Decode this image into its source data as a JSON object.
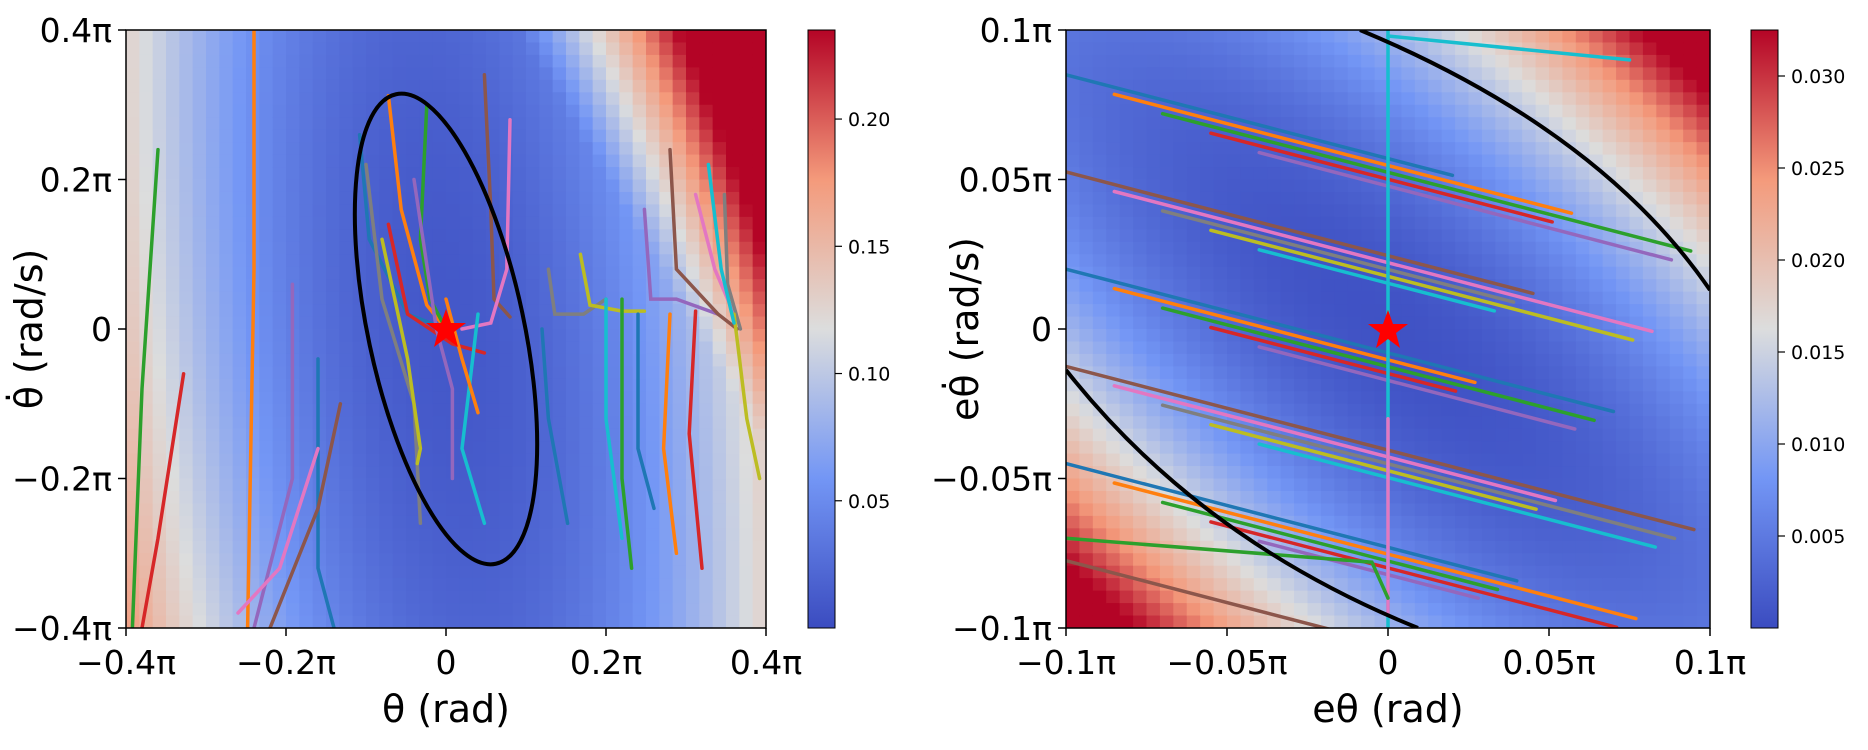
{
  "chart_data": [
    {
      "type": "heatmap",
      "title": "",
      "xlabel": "θ (rad)",
      "ylabel": "θ̇ (rad/s)",
      "x_ticks": [
        "−0.4π",
        "−0.2π",
        "0",
        "0.2π",
        "0.4π"
      ],
      "y_ticks": [
        "0.4π",
        "0.2π",
        "0",
        "−0.2π",
        "−0.4π"
      ],
      "xlim": [
        -0.4,
        0.4
      ],
      "ylim": [
        -0.4,
        0.4
      ],
      "units_note": "values in units of π",
      "colorbar": {
        "ticks": [
          "0.20",
          "0.15",
          "0.10",
          "0.05"
        ],
        "tick_values": [
          0.2,
          0.15,
          0.1,
          0.05
        ],
        "range": [
          0.0,
          0.235
        ]
      },
      "equilibrium_marker": {
        "x": 0,
        "y": 0,
        "label": "★"
      },
      "ellipse": {
        "center": [
          0,
          0
        ],
        "points_note": "closed black ellipse boundary",
        "extent_x": [
          -0.13,
          0.13
        ],
        "extent_y": [
          -0.32,
          0.32
        ]
      },
      "series_colors": [
        "#1f77b4",
        "#ff7f0e",
        "#2ca02c",
        "#d62728",
        "#9467bd",
        "#8c564b",
        "#e377c2",
        "#7f7f7f",
        "#bcbd22",
        "#17becf"
      ]
    },
    {
      "type": "heatmap",
      "title": "",
      "xlabel": "eθ (rad)",
      "ylabel": "eθ̇ (rad/s)",
      "x_ticks": [
        "−0.1π",
        "−0.05π",
        "0",
        "0.05π",
        "0.1π"
      ],
      "y_ticks": [
        "0.1π",
        "0.05π",
        "0",
        "−0.05π",
        "−0.1π"
      ],
      "xlim": [
        -0.1,
        0.1
      ],
      "ylim": [
        -0.1,
        0.1
      ],
      "units_note": "values in units of π",
      "colorbar": {
        "ticks": [
          "0.030",
          "0.025",
          "0.020",
          "0.015",
          "0.010",
          "0.005"
        ],
        "tick_values": [
          0.03,
          0.025,
          0.02,
          0.015,
          0.01,
          0.005
        ],
        "range": [
          0.0,
          0.0325
        ]
      },
      "equilibrium_marker": {
        "x": 0,
        "y": 0,
        "label": "★"
      },
      "boundary_curves": "two black curves (level set)"
    }
  ]
}
